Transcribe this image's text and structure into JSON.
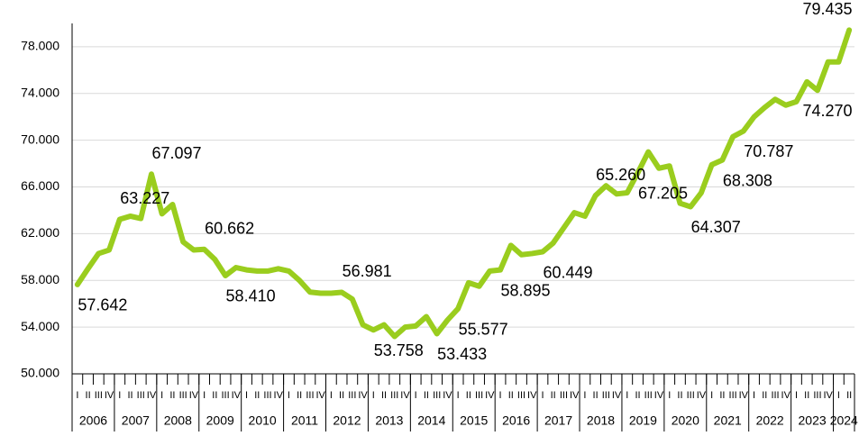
{
  "chart_data": {
    "type": "line",
    "years": [
      "2006",
      "2007",
      "2008",
      "2009",
      "2010",
      "2011",
      "2012",
      "2013",
      "2014",
      "2015",
      "2016",
      "2017",
      "2018",
      "2019",
      "2020",
      "2021",
      "2022",
      "2023",
      "2024"
    ],
    "categories": [
      "I",
      "II",
      "III",
      "IV",
      "I",
      "II",
      "III",
      "IV",
      "I",
      "II",
      "III",
      "IV",
      "I",
      "II",
      "III",
      "IV",
      "I",
      "II",
      "III",
      "IV",
      "I",
      "II",
      "III",
      "IV",
      "I",
      "II",
      "III",
      "IV",
      "I",
      "II",
      "III",
      "IV",
      "I",
      "II",
      "III",
      "IV",
      "I",
      "II",
      "III",
      "IV",
      "I",
      "II",
      "III",
      "IV",
      "I",
      "II",
      "III",
      "IV",
      "I",
      "II",
      "III",
      "IV",
      "I",
      "II",
      "III",
      "IV",
      "I",
      "II",
      "III",
      "IV",
      "I",
      "II",
      "III",
      "IV",
      "I",
      "II",
      "III",
      "IV",
      "I",
      "II",
      "III",
      "IV",
      "I",
      "II"
    ],
    "values": [
      57642,
      59000,
      60300,
      60600,
      63227,
      63500,
      63300,
      67097,
      63700,
      64500,
      61300,
      60600,
      60662,
      59800,
      58410,
      59100,
      58900,
      58800,
      58800,
      59000,
      58800,
      58000,
      57000,
      56900,
      56900,
      56981,
      56400,
      54200,
      53758,
      54200,
      53200,
      54000,
      54100,
      54900,
      53433,
      54600,
      55577,
      57800,
      57500,
      58800,
      58895,
      61000,
      60200,
      60300,
      60449,
      61200,
      62500,
      63800,
      63500,
      65260,
      66100,
      65400,
      65500,
      67205,
      69000,
      67600,
      67800,
      64600,
      64307,
      65500,
      67900,
      68308,
      70300,
      70787,
      72000,
      72800,
      73500,
      73000,
      73300,
      75000,
      74270,
      76700,
      76700,
      79435
    ],
    "value_labels": [
      "57.642",
      null,
      null,
      null,
      "63.227",
      null,
      null,
      "67.097",
      null,
      null,
      null,
      null,
      "60.662",
      null,
      "58.410",
      null,
      null,
      null,
      null,
      null,
      null,
      null,
      null,
      null,
      null,
      "56.981",
      null,
      null,
      "53.758",
      null,
      null,
      null,
      null,
      null,
      "53.433",
      null,
      "55.577",
      null,
      null,
      null,
      "58.895",
      null,
      null,
      null,
      "60.449",
      null,
      null,
      null,
      null,
      "65.260",
      null,
      null,
      null,
      "67.205",
      null,
      null,
      null,
      null,
      "64.307",
      null,
      null,
      "68.308",
      null,
      "70.787",
      null,
      null,
      null,
      null,
      null,
      null,
      "74.270",
      null,
      null,
      "79.435"
    ],
    "color": "#9acd1e",
    "ylim": [
      50000,
      80000
    ],
    "yticks": [
      {
        "value": 50000,
        "label": "50.000"
      },
      {
        "value": 54000,
        "label": "54.000"
      },
      {
        "value": 58000,
        "label": "58.000"
      },
      {
        "value": 62000,
        "label": "62.000"
      },
      {
        "value": 66000,
        "label": "66.000"
      },
      {
        "value": 70000,
        "label": "70.000"
      },
      {
        "value": 74000,
        "label": "74.000"
      },
      {
        "value": 78000,
        "label": "78.000"
      }
    ],
    "grid": true
  }
}
